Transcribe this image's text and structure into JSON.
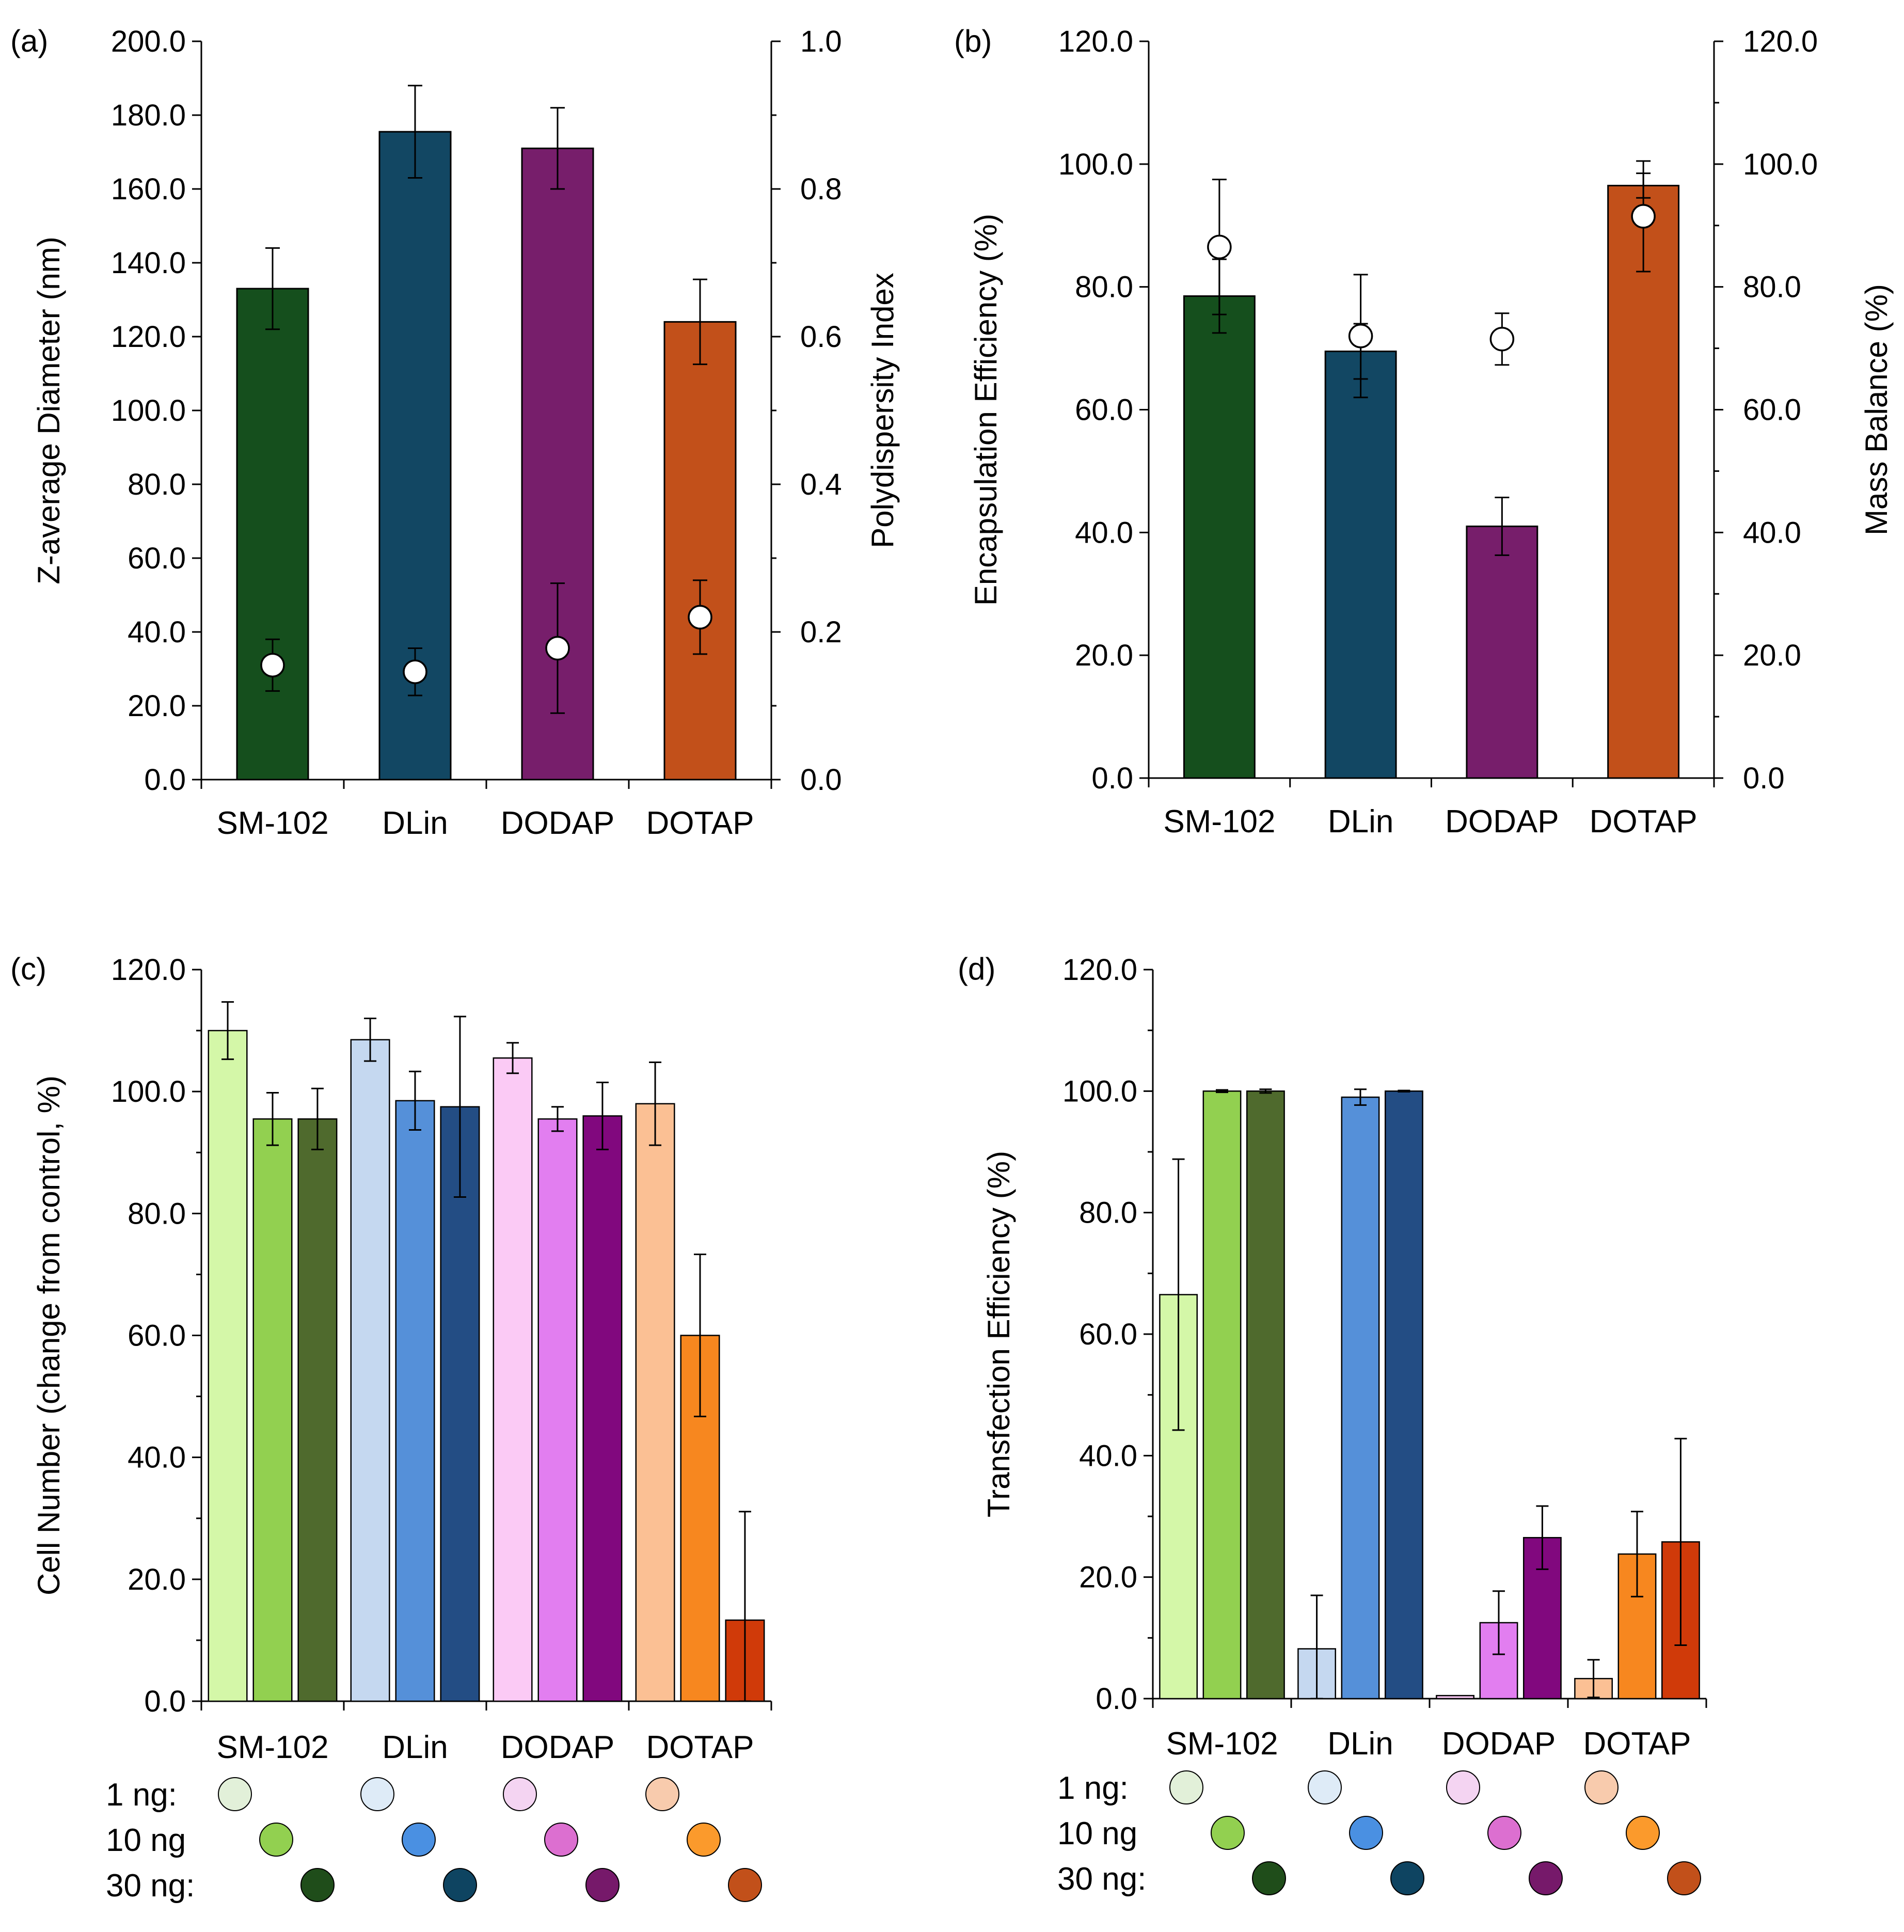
{
  "categories": [
    "SM-102",
    "DLin",
    "DODAP",
    "DOTAP"
  ],
  "colors": {
    "dark": [
      "#154f1d",
      "#124763",
      "#771e6b",
      "#c2501a"
    ],
    "light": [
      "#d4f7a8",
      "#c5d8f0",
      "#fbcaf5",
      "#fbc094"
    ],
    "mid": [
      "#92d050",
      "#5590d9",
      "#e27ef0",
      "#f7871f"
    ],
    "deep": [
      "#4f6a2d",
      "#234d84",
      "#81087e",
      "#d03a09"
    ],
    "legend1": [
      "#e2f0d9",
      "#deebf7",
      "#f4d4f2",
      "#f8cbad"
    ],
    "legend10": [
      "#92d050",
      "#4a90e2",
      "#dc6fd0",
      "#fb9a2c"
    ],
    "legend30": [
      "#1f4d1a",
      "#0e4461",
      "#76196a",
      "#c2501a"
    ]
  },
  "legend": {
    "labels_c": [
      "1 ng:",
      "10 ng",
      "30 ng:"
    ],
    "labels_d": [
      "1 ng:",
      "10 ng",
      "30 ng:"
    ]
  },
  "chart_data": [
    {
      "panel": "(a)",
      "type": "bar",
      "categories": [
        "SM-102",
        "DLin",
        "DODAP",
        "DOTAP"
      ],
      "ylabel": "Z-average Diameter (nm)",
      "y2label": "Polydispersity Index",
      "ylim": [
        0,
        200
      ],
      "y2lim": [
        0,
        1
      ],
      "yticks": [
        "0.0",
        "20.0",
        "40.0",
        "60.0",
        "80.0",
        "100.0",
        "120.0",
        "140.0",
        "160.0",
        "180.0",
        "200.0"
      ],
      "y2ticks": [
        "0.0",
        "0.2",
        "0.4",
        "0.6",
        "0.8",
        "1.0"
      ],
      "bars": {
        "values": [
          133.0,
          175.5,
          171.0,
          124.0
        ],
        "errors": [
          11.0,
          12.5,
          11.0,
          11.5
        ]
      },
      "markers": {
        "axis": "right",
        "values": [
          0.155,
          0.146,
          0.178,
          0.22
        ],
        "errors": [
          0.035,
          0.032,
          0.088,
          0.05
        ]
      }
    },
    {
      "panel": "(b)",
      "type": "bar",
      "categories": [
        "SM-102",
        "DLin",
        "DODAP",
        "DOTAP"
      ],
      "ylabel": "Encapsulation Efficiency (%)",
      "y2label": "Mass Balance (%)",
      "ylim": [
        0,
        120
      ],
      "y2lim": [
        0,
        120
      ],
      "yticks": [
        "0.0",
        "20.0",
        "40.0",
        "60.0",
        "80.0",
        "100.0",
        "120.0"
      ],
      "y2ticks": [
        "0.0",
        "20.0",
        "40.0",
        "60.0",
        "80.0",
        "100.0",
        "120.0"
      ],
      "bars": {
        "values": [
          78.5,
          69.5,
          41.0,
          96.5
        ],
        "errors": [
          6.0,
          4.5,
          4.7,
          2.0
        ]
      },
      "markers": {
        "axis": "right",
        "values": [
          86.5,
          72.0,
          71.5,
          91.5
        ],
        "errors": [
          11.0,
          10.0,
          4.2,
          9.0
        ]
      }
    },
    {
      "panel": "(c)",
      "type": "grouped-bar",
      "categories": [
        "SM-102",
        "DLin",
        "DODAP",
        "DOTAP"
      ],
      "ylabel": "Cell Number (change from control, %)",
      "ylim": [
        0,
        120
      ],
      "yticks": [
        "0.0",
        "20.0",
        "40.0",
        "60.0",
        "80.0",
        "100.0",
        "120.0"
      ],
      "series": [
        {
          "name": "1 ng",
          "values": [
            110.0,
            108.5,
            105.5,
            98.0
          ],
          "errors": [
            4.7,
            3.5,
            2.5,
            6.8
          ]
        },
        {
          "name": "10 ng",
          "values": [
            95.5,
            98.5,
            95.5,
            60.0
          ],
          "errors": [
            4.3,
            4.8,
            2.0,
            13.3
          ]
        },
        {
          "name": "30 ng",
          "values": [
            95.5,
            97.5,
            96.0,
            13.3
          ],
          "errors": [
            5.0,
            14.8,
            5.5,
            17.8
          ]
        }
      ]
    },
    {
      "panel": "(d)",
      "type": "grouped-bar",
      "categories": [
        "SM-102",
        "DLin",
        "DODAP",
        "DOTAP"
      ],
      "ylabel": "Transfection Efficiency (%)",
      "ylim": [
        0,
        120
      ],
      "yticks": [
        "0.0",
        "20.0",
        "40.0",
        "60.0",
        "80.0",
        "100.0",
        "120.0"
      ],
      "series": [
        {
          "name": "1 ng",
          "values": [
            66.5,
            8.2,
            0.5,
            3.3
          ],
          "errors": [
            22.3,
            8.8,
            0.0,
            3.1
          ]
        },
        {
          "name": "10 ng",
          "values": [
            100.0,
            99.0,
            12.5,
            23.8
          ],
          "errors": [
            0.2,
            1.3,
            5.2,
            7.0
          ]
        },
        {
          "name": "30 ng",
          "values": [
            100.0,
            100.0,
            26.5,
            25.8
          ],
          "errors": [
            0.3,
            0.1,
            5.2,
            17.0
          ]
        }
      ]
    }
  ]
}
